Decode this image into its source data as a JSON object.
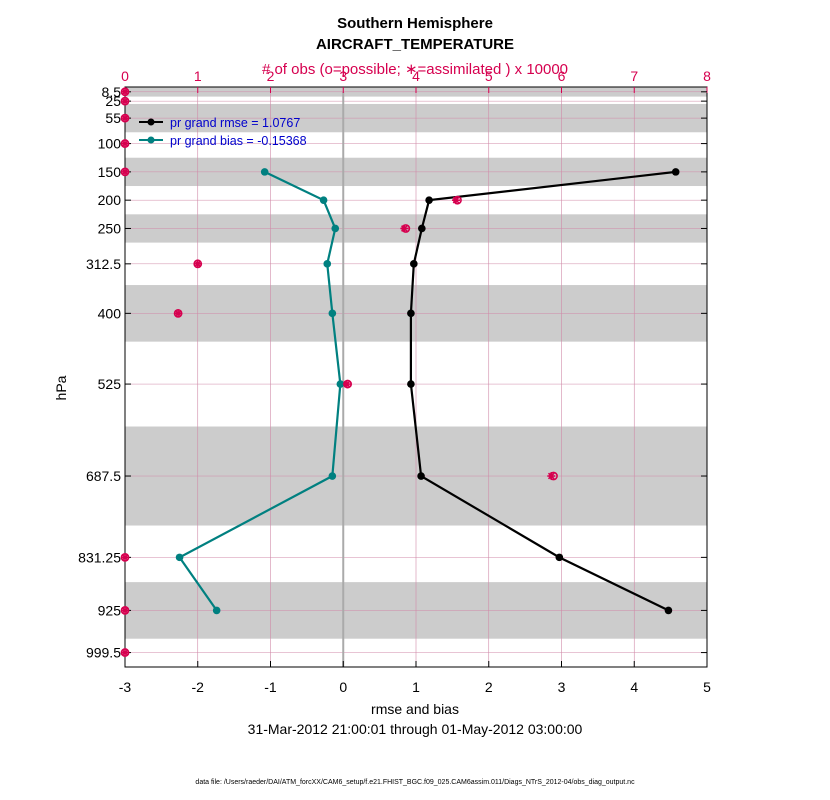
{
  "titles": {
    "line1": "Southern Hemisphere",
    "line2": "AIRCRAFT_TEMPERATURE",
    "top_axis_label": "# of obs (o=possible; ∗=assimilated ) x 10000"
  },
  "footer": {
    "date_range": "31-Mar-2012 21:00:01 through 01-May-2012 03:00:00",
    "data_file": "data file: /Users/raeder/DAI/ATM_forcXX/CAM6_setup/f.e21.FHIST_BGC.f09_025.CAM6assim.011/Diags_NTrS_2012-04/obs_diag_output.nc"
  },
  "chart_data": {
    "type": "line",
    "xlabel": "rmse and bias",
    "ylabel": "hPa",
    "xlim": [
      -3,
      5
    ],
    "x_ticks": [
      "-3",
      "-2",
      "-1",
      "0",
      "1",
      "2",
      "3",
      "4",
      "5"
    ],
    "top_xlim": [
      0,
      8
    ],
    "top_ticks": [
      "0",
      "1",
      "2",
      "3",
      "4",
      "5",
      "6",
      "7",
      "8"
    ],
    "ylim_hPa": [
      1025,
      0
    ],
    "levels": [
      8.5,
      25,
      55,
      100,
      150,
      200,
      250,
      312.5,
      400,
      525,
      687.5,
      831.25,
      925,
      999.5
    ],
    "level_labels": [
      "8.5",
      "25",
      "55",
      "100",
      "150",
      "200",
      "250",
      "312.5",
      "400",
      "525",
      "687.5",
      "831.25",
      "925",
      "999.5"
    ],
    "level_bands": [
      [
        0,
        17
      ],
      [
        30,
        80
      ],
      [
        125,
        175
      ],
      [
        225,
        275
      ],
      [
        350,
        450
      ],
      [
        600,
        775
      ],
      [
        875,
        975
      ]
    ],
    "legend": {
      "rmse": "pr grand rmse = 1.0767",
      "bias": "pr grand bias = -0.15368"
    },
    "series": [
      {
        "name": "rmse",
        "color": "#000000",
        "points": [
          [
            4.57,
            150
          ],
          [
            1.18,
            200
          ],
          [
            1.08,
            250
          ],
          [
            0.97,
            312.5
          ],
          [
            0.93,
            400
          ],
          [
            0.93,
            525
          ],
          [
            1.07,
            687.5
          ],
          [
            2.97,
            831.25
          ],
          [
            4.47,
            925
          ]
        ]
      },
      {
        "name": "bias",
        "color": "#008080",
        "points": [
          [
            -1.08,
            150
          ],
          [
            -0.27,
            200
          ],
          [
            -0.11,
            250
          ],
          [
            -0.22,
            312.5
          ],
          [
            -0.15,
            400
          ],
          [
            -0.04,
            525
          ],
          [
            -0.15,
            687.5
          ],
          [
            -2.25,
            831.25
          ],
          [
            -1.74,
            925
          ]
        ]
      }
    ],
    "obs_possible": [
      [
        0,
        8.5
      ],
      [
        0,
        25
      ],
      [
        0,
        55
      ],
      [
        0,
        100
      ],
      [
        0,
        150
      ],
      [
        4.57,
        200
      ],
      [
        3.86,
        250
      ],
      [
        1.0,
        312.5
      ],
      [
        0.73,
        400
      ],
      [
        3.06,
        525
      ],
      [
        5.89,
        687.5
      ],
      [
        0,
        831.25
      ],
      [
        0,
        925
      ],
      [
        0,
        999.5
      ]
    ],
    "obs_assimilated": [
      [
        0,
        8.5
      ],
      [
        0,
        25
      ],
      [
        0,
        55
      ],
      [
        0,
        100
      ],
      [
        0,
        150
      ],
      [
        4.55,
        200
      ],
      [
        3.84,
        250
      ],
      [
        1.0,
        312.5
      ],
      [
        0.73,
        400
      ],
      [
        3.05,
        525
      ],
      [
        5.86,
        687.5
      ],
      [
        0,
        831.25
      ],
      [
        0,
        925
      ],
      [
        0,
        999.5
      ]
    ],
    "marker_color": "#d6004f"
  }
}
